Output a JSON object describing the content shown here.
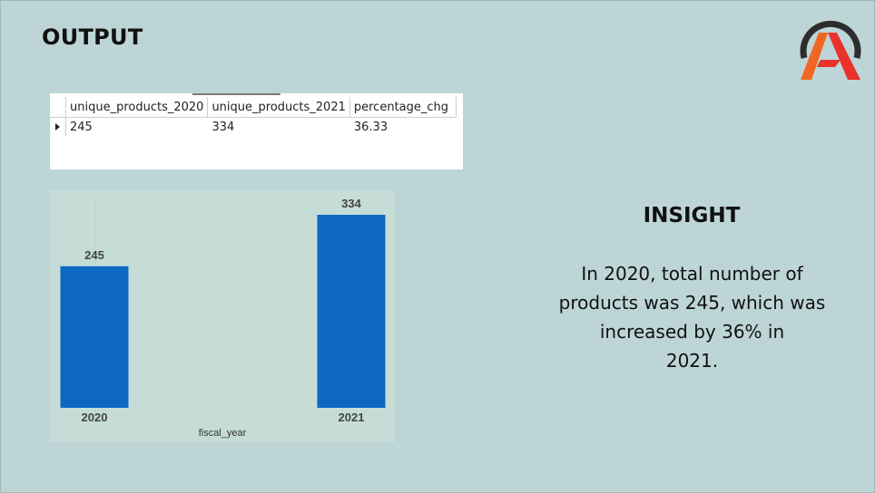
{
  "title": "OUTPUT",
  "logo": {
    "icon": "a-letter-logo-icon",
    "colors": [
      "#2d2d2d",
      "#f26522",
      "#e8322b"
    ]
  },
  "result_grid": {
    "columns": [
      "unique_products_2020",
      "unique_products_2021",
      "percentage_chg"
    ],
    "rows": [
      [
        "245",
        "334",
        "36.33"
      ]
    ],
    "row_indicator_icon": "current-row-arrow-icon"
  },
  "chart_data": {
    "type": "bar",
    "categories": [
      "2020",
      "2021"
    ],
    "values": [
      245,
      334
    ],
    "data_labels": [
      "245",
      "334"
    ],
    "xlabel": "fiscal_year",
    "ylabel": "",
    "ylim": [
      0,
      345
    ],
    "bar_color": "#0d68c2",
    "background": "#c5ddd6",
    "grid": false
  },
  "insight": {
    "title": "INSIGHT",
    "lines": [
      "In  2020, total number of",
      "products was 245, which was",
      "increased by 36% in",
      "2021."
    ]
  }
}
